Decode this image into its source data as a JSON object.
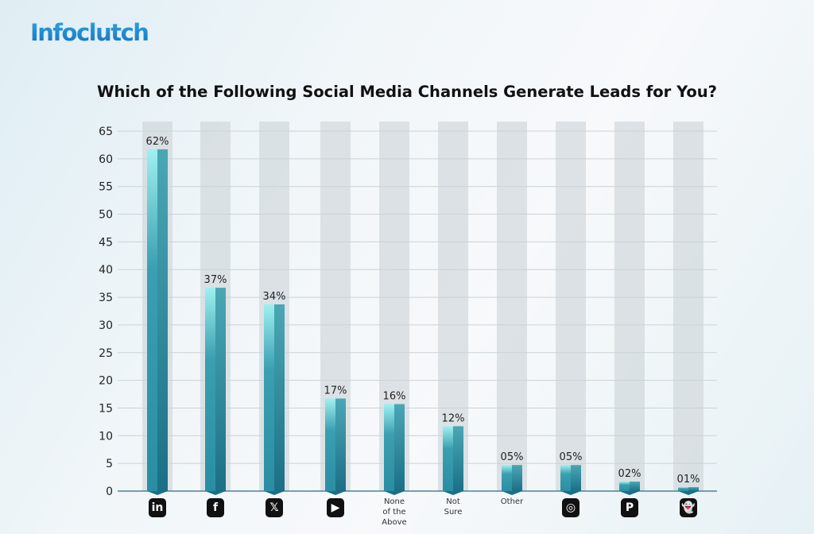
{
  "logo": "Infoclutch",
  "chart_data": {
    "type": "bar",
    "title": "Which of the Following Social Media Channels Generate Leads for You?",
    "categories": [
      "LinkedIn",
      "Facebook",
      "X",
      "YouTube",
      "None of the Above",
      "Not Sure",
      "Other",
      "Instagram",
      "Pinterest",
      "Snapchat"
    ],
    "category_display": [
      {
        "kind": "icon",
        "icon": "linkedin-icon",
        "glyph": "in"
      },
      {
        "kind": "icon",
        "icon": "facebook-icon",
        "glyph": "f"
      },
      {
        "kind": "icon",
        "icon": "x-icon",
        "glyph": "𝕏"
      },
      {
        "kind": "icon",
        "icon": "youtube-icon",
        "glyph": "▶"
      },
      {
        "kind": "text",
        "text": "None of the Above"
      },
      {
        "kind": "text",
        "text": "Not Sure"
      },
      {
        "kind": "text",
        "text": "Other"
      },
      {
        "kind": "icon",
        "icon": "instagram-icon",
        "glyph": "◎"
      },
      {
        "kind": "icon",
        "icon": "pinterest-icon",
        "glyph": "P"
      },
      {
        "kind": "icon",
        "icon": "snapchat-icon",
        "glyph": "👻"
      }
    ],
    "values": [
      62,
      37,
      34,
      17,
      16,
      12,
      5,
      5,
      2,
      1
    ],
    "data_labels": [
      "62%",
      "37%",
      "34%",
      "17%",
      "16%",
      "12%",
      "05%",
      "05%",
      "02%",
      "01%"
    ],
    "ylim": [
      0,
      65
    ],
    "yticks": [
      0,
      5,
      10,
      15,
      20,
      25,
      30,
      35,
      40,
      45,
      50,
      55,
      60,
      65
    ],
    "grid": true,
    "colors": {
      "bar_light": "#9ff0f0",
      "bar_mid": "#3a9fb0",
      "bar_dark": "#1b6f86",
      "band": "#d3dadd"
    }
  }
}
